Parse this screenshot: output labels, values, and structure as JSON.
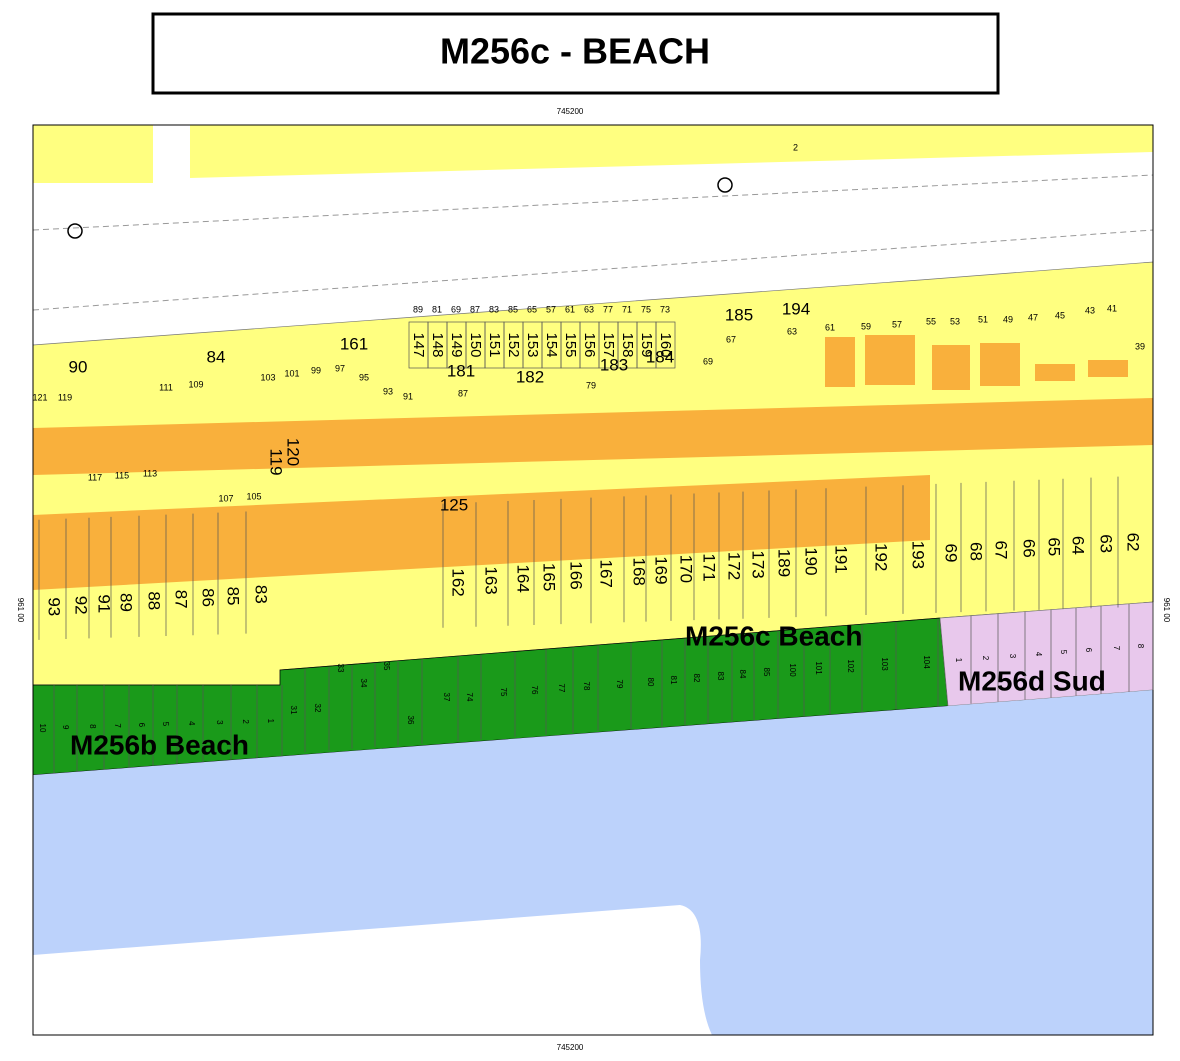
{
  "header": {
    "title": "M256c - BEACH"
  },
  "frame": {
    "top_coord": "745200",
    "bottom_coord": "745200",
    "left_coord": "961 00",
    "right_coord": "961 00",
    "road_number": "2"
  },
  "zones": {
    "c": "M256c Beach",
    "b": "M256b Beach",
    "d": "M256d Sud"
  },
  "parcels_front": [
    "93",
    "92",
    "91",
    "89",
    "88",
    "87",
    "86",
    "85",
    "83",
    "162",
    "163",
    "164",
    "165",
    "166",
    "167",
    "168",
    "169",
    "170",
    "171",
    "172",
    "173",
    "189",
    "190",
    "191",
    "192",
    "193",
    "69",
    "68",
    "67",
    "66",
    "65",
    "64",
    "63",
    "62"
  ],
  "parcels_block": [
    "147",
    "148",
    "149",
    "150",
    "151",
    "152",
    "153",
    "154",
    "155",
    "156",
    "157",
    "158",
    "159",
    "160"
  ],
  "block_numbers": [
    "89",
    "81",
    "69",
    "87",
    "83",
    "85",
    "65",
    "57",
    "61",
    "63",
    "77",
    "71",
    "75",
    "73"
  ],
  "parcels_named": [
    "90",
    "84",
    "161",
    "181",
    "182",
    "183",
    "184",
    "185",
    "194",
    "125",
    "119",
    "120"
  ],
  "street_numbers": [
    "121",
    "119",
    "111",
    "109",
    "103",
    "101",
    "99",
    "97",
    "95",
    "93",
    "91",
    "87",
    "79",
    "69",
    "67",
    "63",
    "61",
    "59",
    "57",
    "55",
    "53",
    "51",
    "49",
    "47",
    "45",
    "43",
    "41",
    "39"
  ],
  "street_numbers_lower": [
    "117",
    "115",
    "113",
    "107",
    "105"
  ],
  "beach_b_lots": [
    "10",
    "9",
    "8",
    "7",
    "6",
    "5",
    "4",
    "3",
    "2",
    "1"
  ],
  "beach_c_lots": [
    "31",
    "32",
    "33",
    "34",
    "35",
    "36",
    "37",
    "74",
    "75",
    "76",
    "77",
    "78",
    "79",
    "80",
    "81",
    "82",
    "83",
    "84",
    "85",
    "100",
    "101",
    "102",
    "103",
    "104"
  ],
  "beach_d_lots": [
    "1",
    "2",
    "3",
    "4",
    "5",
    "6",
    "7",
    "8"
  ]
}
